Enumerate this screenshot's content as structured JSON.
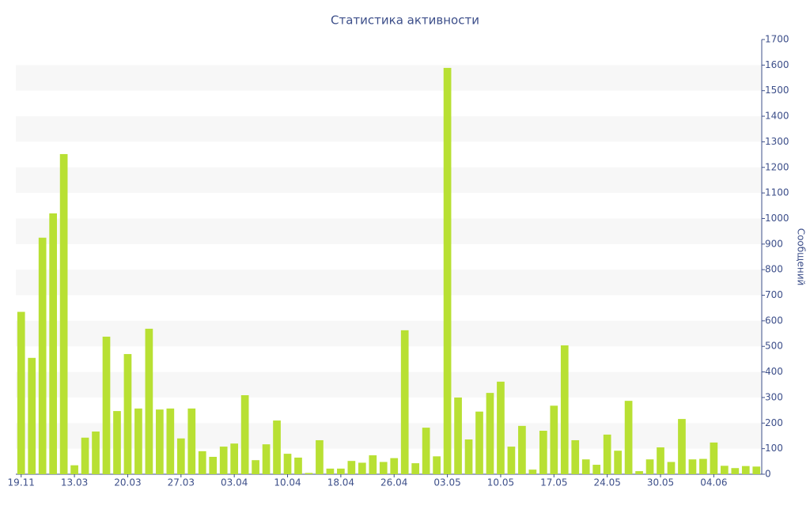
{
  "chart_data": {
    "type": "bar",
    "title": "Статистика активности",
    "y_label": "Сообщений",
    "categories": [
      "19.11",
      null,
      null,
      null,
      null,
      "13.03",
      null,
      null,
      null,
      null,
      "20.03",
      null,
      null,
      null,
      null,
      "27.03",
      null,
      null,
      null,
      null,
      "03.04",
      null,
      null,
      null,
      null,
      "10.04",
      null,
      null,
      null,
      null,
      "18.04",
      null,
      null,
      null,
      null,
      "26.04",
      null,
      null,
      null,
      null,
      "03.05",
      null,
      null,
      null,
      null,
      "10.05",
      null,
      null,
      null,
      null,
      "17.05",
      null,
      null,
      null,
      null,
      "24.05",
      null,
      null,
      null,
      null,
      "30.05",
      null,
      null,
      null,
      null,
      "04.06",
      null,
      null,
      null,
      null
    ],
    "values": [
      635,
      455,
      925,
      1020,
      1252,
      35,
      143,
      167,
      538,
      247,
      470,
      257,
      569,
      253,
      257,
      140,
      257,
      90,
      68,
      108,
      120,
      309,
      55,
      117,
      210,
      80,
      65,
      5,
      133,
      22,
      22,
      52,
      45,
      74,
      48,
      63,
      563,
      43,
      182,
      70,
      1589,
      300,
      136,
      245,
      318,
      362,
      108,
      189,
      18,
      170,
      268,
      504,
      133,
      58,
      37,
      155,
      92,
      287,
      12,
      58,
      105,
      48,
      216,
      58,
      60,
      124,
      33,
      24,
      32,
      30
    ],
    "color": "#b8e033",
    "ylim": [
      0,
      1700
    ],
    "yticks": [
      0,
      100,
      200,
      300,
      400,
      500,
      600,
      700,
      800,
      900,
      1000,
      1100,
      1200,
      1300,
      1400,
      1500,
      1600,
      1700
    ],
    "grid": true
  }
}
